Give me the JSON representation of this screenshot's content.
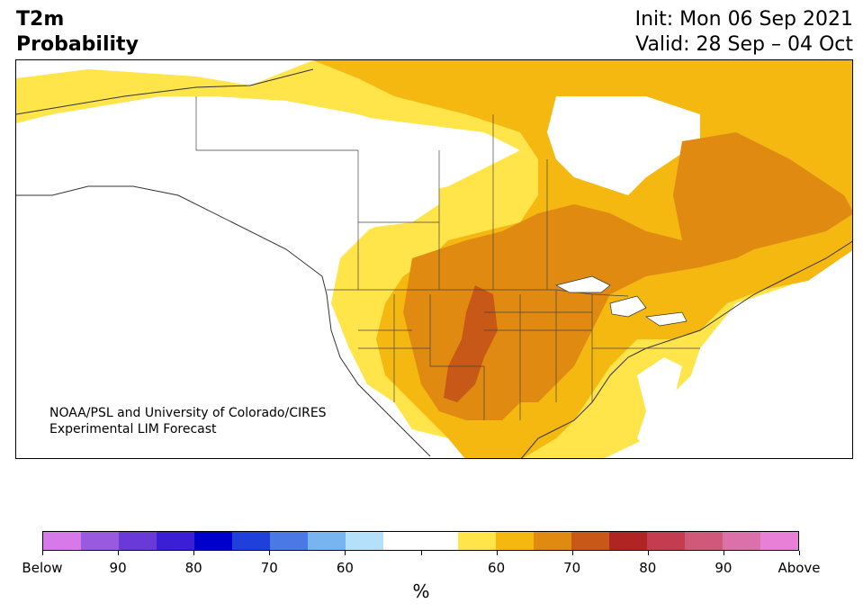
{
  "header": {
    "variable": "T2m",
    "product": "Probability",
    "init": "Init: Mon 06 Sep 2021",
    "valid": "Valid: 28 Sep – 04 Oct"
  },
  "credit": {
    "line1": "NOAA/PSL and University of Colorado/CIRES",
    "line2": "Experimental LIM Forecast"
  },
  "legend": {
    "units": "%",
    "colors": [
      "#d57ae8",
      "#9a5ae0",
      "#6a3ad8",
      "#3a1fd4",
      "#0000cc",
      "#2040dc",
      "#4a78e4",
      "#78b4f0",
      "#b4e0fc",
      "#ffffff",
      "#ffffff",
      "#ffe44a",
      "#f4b810",
      "#e08a12",
      "#c85818",
      "#b02424",
      "#c43c50",
      "#d05878",
      "#dc70a8",
      "#e880d8"
    ],
    "tick_labels": [
      "Below",
      "90",
      "80",
      "70",
      "60",
      "",
      "60",
      "70",
      "80",
      "90",
      "Above"
    ]
  },
  "map": {
    "colors": {
      "yellow": "#ffe44a",
      "gold": "#f4b810",
      "orange": "#e08a12",
      "dark_orange": "#c85818",
      "land_outline": "#333333"
    }
  }
}
